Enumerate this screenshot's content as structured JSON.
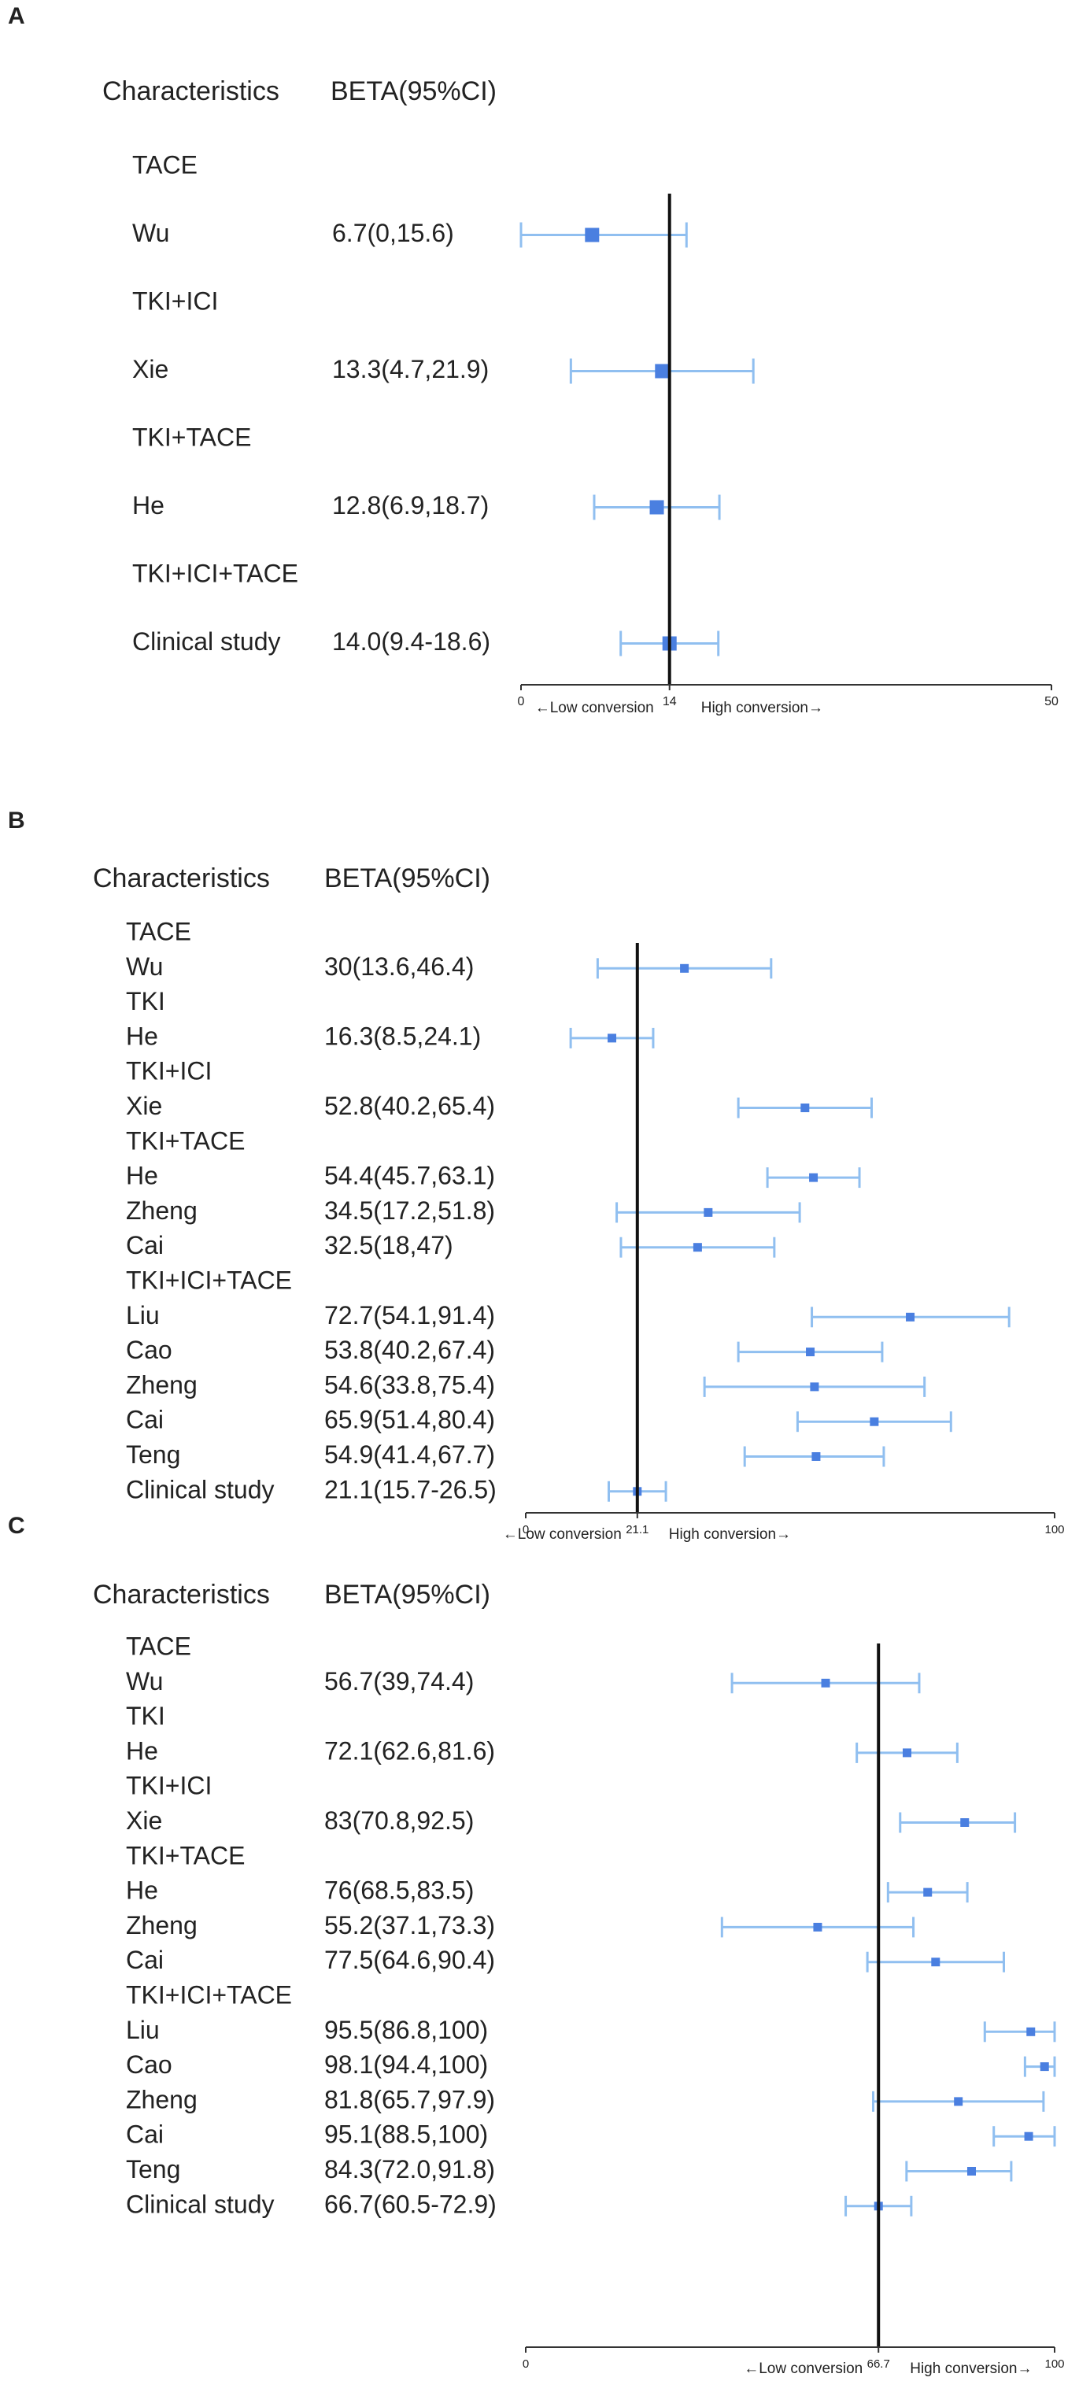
{
  "colors": {
    "marker": "#4a7fe0",
    "ci": "#90bff0",
    "ref": "#111111"
  },
  "chart_data": [
    {
      "type": "forest",
      "panel": "A",
      "col_headers": [
        "Characteristics",
        "BETA(95%CI)"
      ],
      "xlim": [
        0,
        50
      ],
      "ref_value": 14,
      "ticks": [
        "0",
        "14",
        "50"
      ],
      "tick_values": [
        0,
        14,
        50
      ],
      "xlabel_left": "←Low  conversion",
      "xlabel_right": "High conversion→",
      "rows": [
        {
          "label": "TACE",
          "group": true
        },
        {
          "label": "Wu",
          "text": "6.7(0,15.6)",
          "est": 6.7,
          "lo": 0,
          "hi": 15.6
        },
        {
          "label": "TKI+ICI",
          "group": true
        },
        {
          "label": "Xie",
          "text": "13.3(4.7,21.9)",
          "est": 13.3,
          "lo": 4.7,
          "hi": 21.9
        },
        {
          "label": "TKI+TACE",
          "group": true
        },
        {
          "label": "He",
          "text": "12.8(6.9,18.7)",
          "est": 12.8,
          "lo": 6.9,
          "hi": 18.7
        },
        {
          "label": "TKI+ICI+TACE",
          "group": true
        },
        {
          "label": "Clinical study",
          "text": "14.0(9.4-18.6)",
          "est": 14.0,
          "lo": 9.4,
          "hi": 18.6
        }
      ]
    },
    {
      "type": "forest",
      "panel": "B",
      "col_headers": [
        "Characteristics",
        "BETA(95%CI)"
      ],
      "xlim": [
        0,
        100
      ],
      "ref_value": 21.1,
      "ticks": [
        "0",
        "21.1",
        "100"
      ],
      "tick_values": [
        0,
        21.1,
        100
      ],
      "xlabel_left": "←Low  conversion",
      "xlabel_right": "High conversion→",
      "rows": [
        {
          "label": "TACE",
          "group": true
        },
        {
          "label": "Wu",
          "text": "30(13.6,46.4)",
          "est": 30,
          "lo": 13.6,
          "hi": 46.4
        },
        {
          "label": "TKI",
          "group": true
        },
        {
          "label": "He",
          "text": "16.3(8.5,24.1)",
          "est": 16.3,
          "lo": 8.5,
          "hi": 24.1
        },
        {
          "label": "TKI+ICI",
          "group": true
        },
        {
          "label": "Xie",
          "text": "52.8(40.2,65.4)",
          "est": 52.8,
          "lo": 40.2,
          "hi": 65.4
        },
        {
          "label": "TKI+TACE",
          "group": true
        },
        {
          "label": "He",
          "text": "54.4(45.7,63.1)",
          "est": 54.4,
          "lo": 45.7,
          "hi": 63.1
        },
        {
          "label": "Zheng",
          "text": "34.5(17.2,51.8)",
          "est": 34.5,
          "lo": 17.2,
          "hi": 51.8
        },
        {
          "label": "Cai",
          "text": "32.5(18,47)",
          "est": 32.5,
          "lo": 18,
          "hi": 47
        },
        {
          "label": "TKI+ICI+TACE",
          "group": true
        },
        {
          "label": "Liu",
          "text": "72.7(54.1,91.4)",
          "est": 72.7,
          "lo": 54.1,
          "hi": 91.4
        },
        {
          "label": "Cao",
          "text": "53.8(40.2,67.4)",
          "est": 53.8,
          "lo": 40.2,
          "hi": 67.4
        },
        {
          "label": "Zheng",
          "text": "54.6(33.8,75.4)",
          "est": 54.6,
          "lo": 33.8,
          "hi": 75.4
        },
        {
          "label": "Cai",
          "text": "65.9(51.4,80.4)",
          "est": 65.9,
          "lo": 51.4,
          "hi": 80.4
        },
        {
          "label": "Teng",
          "text": "54.9(41.4,67.7)",
          "est": 54.9,
          "lo": 41.4,
          "hi": 67.7
        },
        {
          "label": "Clinical study",
          "text": "21.1(15.7-26.5)",
          "est": 21.1,
          "lo": 15.7,
          "hi": 26.5
        }
      ]
    },
    {
      "type": "forest",
      "panel": "C",
      "col_headers": [
        "Characteristics",
        "BETA(95%CI)"
      ],
      "xlim": [
        0,
        100
      ],
      "ref_value": 66.7,
      "ticks": [
        "0",
        "66.7",
        "100"
      ],
      "tick_values": [
        0,
        66.7,
        100
      ],
      "xlabel_left": "←Low  conversion",
      "xlabel_right": "High conversion→",
      "rows": [
        {
          "label": "TACE",
          "group": true
        },
        {
          "label": "Wu",
          "text": "56.7(39,74.4)",
          "est": 56.7,
          "lo": 39,
          "hi": 74.4
        },
        {
          "label": "TKI",
          "group": true
        },
        {
          "label": "He",
          "text": "72.1(62.6,81.6)",
          "est": 72.1,
          "lo": 62.6,
          "hi": 81.6
        },
        {
          "label": "TKI+ICI",
          "group": true
        },
        {
          "label": "Xie",
          "text": "83(70.8,92.5)",
          "est": 83,
          "lo": 70.8,
          "hi": 92.5
        },
        {
          "label": "TKI+TACE",
          "group": true
        },
        {
          "label": "He",
          "text": "76(68.5,83.5)",
          "est": 76,
          "lo": 68.5,
          "hi": 83.5
        },
        {
          "label": "Zheng",
          "text": "55.2(37.1,73.3)",
          "est": 55.2,
          "lo": 37.1,
          "hi": 73.3
        },
        {
          "label": "Cai",
          "text": "77.5(64.6,90.4)",
          "est": 77.5,
          "lo": 64.6,
          "hi": 90.4
        },
        {
          "label": "TKI+ICI+TACE",
          "group": true
        },
        {
          "label": "Liu",
          "text": "95.5(86.8,100)",
          "est": 95.5,
          "lo": 86.8,
          "hi": 100
        },
        {
          "label": "Cao",
          "text": "98.1(94.4,100)",
          "est": 98.1,
          "lo": 94.4,
          "hi": 100
        },
        {
          "label": "Zheng",
          "text": "81.8(65.7,97.9)",
          "est": 81.8,
          "lo": 65.7,
          "hi": 97.9
        },
        {
          "label": "Cai",
          "text": "95.1(88.5,100)",
          "est": 95.1,
          "lo": 88.5,
          "hi": 100
        },
        {
          "label": "Teng",
          "text": "84.3(72.0,91.8)",
          "est": 84.3,
          "lo": 72.0,
          "hi": 91.8
        },
        {
          "label": "Clinical study",
          "text": "66.7(60.5-72.9)",
          "est": 66.7,
          "lo": 60.5,
          "hi": 72.9
        }
      ]
    }
  ]
}
